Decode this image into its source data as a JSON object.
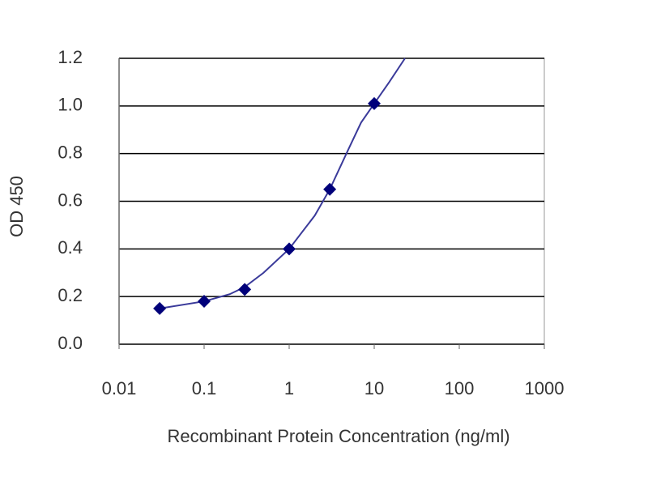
{
  "chart_data": {
    "type": "scatter",
    "xlabel": "Recombinant Protein Concentration  (ng/ml)",
    "ylabel": "OD 450",
    "x": [
      0.03,
      0.1,
      0.3,
      1,
      3,
      10
    ],
    "values": [
      0.15,
      0.18,
      0.23,
      0.4,
      0.65,
      1.01
    ],
    "color": "#00007a",
    "curve": {
      "x": [
        0.03,
        0.1,
        0.2,
        0.3,
        0.5,
        1,
        2,
        3,
        5,
        7,
        10,
        15,
        23
      ],
      "values": [
        0.15,
        0.18,
        0.21,
        0.24,
        0.3,
        0.4,
        0.54,
        0.65,
        0.82,
        0.93,
        1.01,
        1.1,
        1.2
      ],
      "color": "#3a3a9a"
    },
    "xscale": "log",
    "xlim": [
      0.01,
      1000
    ],
    "xticks": [
      0.01,
      0.1,
      1,
      10,
      100,
      1000
    ],
    "ylim": [
      0,
      1.2
    ],
    "yticks": [
      {
        "value": 0,
        "label": "0.0"
      },
      0.2,
      0.4,
      0.6,
      0.8,
      {
        "value": 1,
        "label": "1.0"
      },
      1.2
    ],
    "grid": true
  }
}
